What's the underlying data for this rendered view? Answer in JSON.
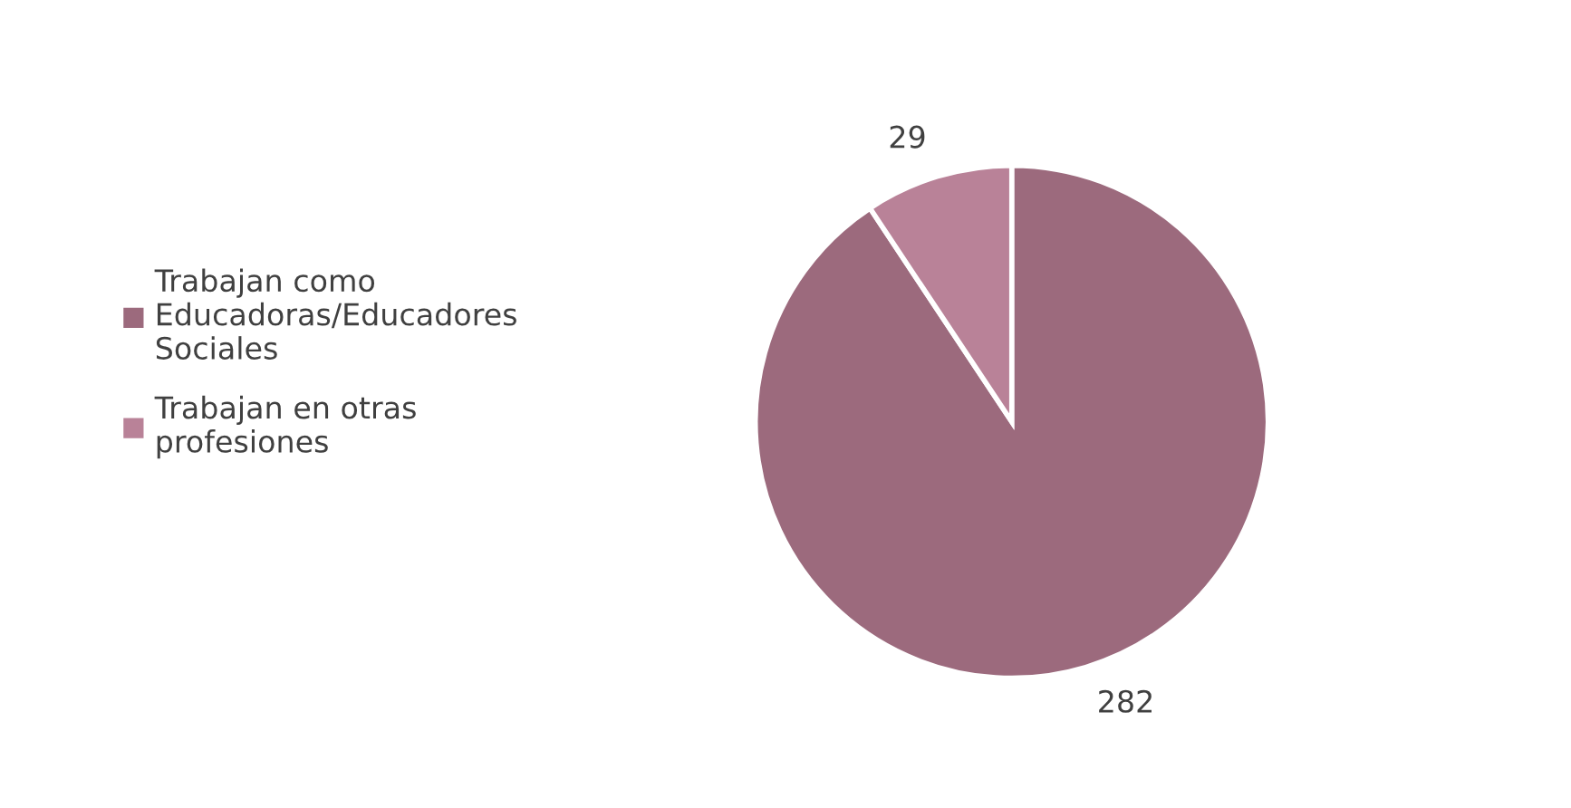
{
  "chart_data": {
    "type": "pie",
    "categories": [
      "Trabajan como Educadoras/Educadores Sociales",
      "Trabajan en otras profesiones"
    ],
    "values": [
      282,
      29
    ],
    "colors": [
      "#9c6a7d",
      "#b98298"
    ],
    "data_labels": true,
    "legend": "left"
  }
}
